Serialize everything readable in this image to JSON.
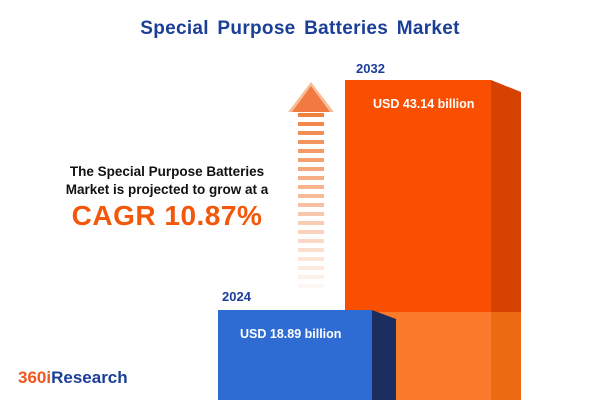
{
  "title": "Special Purpose Batteries Market",
  "description": {
    "line1": "The Special Purpose Batteries",
    "line2": "Market is projected to grow at a",
    "cagr": "CAGR 10.87%"
  },
  "chart_data": {
    "type": "bar",
    "title": "Special Purpose Batteries Market",
    "categories": [
      "2024",
      "2032"
    ],
    "values": [
      18.89,
      43.14
    ],
    "unit": "USD billion",
    "value_labels": [
      "USD 18.89 billion",
      "USD 43.14 billion"
    ],
    "cagr_percent": 10.87,
    "colors": {
      "bar_2024": "#2e6bd2",
      "bar_2024_side": "#1b2d5e",
      "bar_2032": "#fa4e00",
      "bar_2032_side": "#d54202",
      "bar_2032_base": "#f97b2b",
      "accent_orange": "#f2570a",
      "title_blue": "#1b3e97"
    },
    "legend_position": "none",
    "grid": false
  },
  "logo": {
    "prefix": "360i",
    "suffix": "Research"
  }
}
